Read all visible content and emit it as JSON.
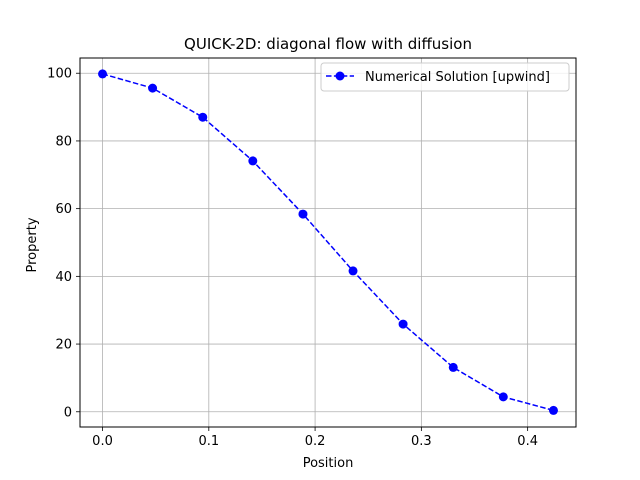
{
  "chart_data": {
    "type": "line",
    "title": "QUICK-2D: diagonal flow with diffusion",
    "xlabel": "Position",
    "ylabel": "Property",
    "xlim": [
      -0.0212,
      0.4455
    ],
    "ylim": [
      -4.5,
      104.5
    ],
    "x_ticks": [
      0.0,
      0.1,
      0.2,
      0.3,
      0.4
    ],
    "x_tick_labels": [
      "0.0",
      "0.1",
      "0.2",
      "0.3",
      "0.4"
    ],
    "y_ticks": [
      0,
      20,
      40,
      60,
      80,
      100
    ],
    "y_tick_labels": [
      "0",
      "20",
      "40",
      "60",
      "80",
      "100"
    ],
    "grid": true,
    "legend_position": "top-right",
    "series": [
      {
        "name": "Numerical Solution [upwind]",
        "color": "#0000ff",
        "line_style": "dashed",
        "marker": "circle",
        "x": [
          0.0,
          0.0471,
          0.0943,
          0.1414,
          0.1886,
          0.2357,
          0.2828,
          0.33,
          0.3771,
          0.4243
        ],
        "y": [
          99.8,
          95.6,
          87.0,
          74.1,
          58.4,
          41.6,
          25.9,
          13.1,
          4.4,
          0.4
        ]
      }
    ]
  }
}
